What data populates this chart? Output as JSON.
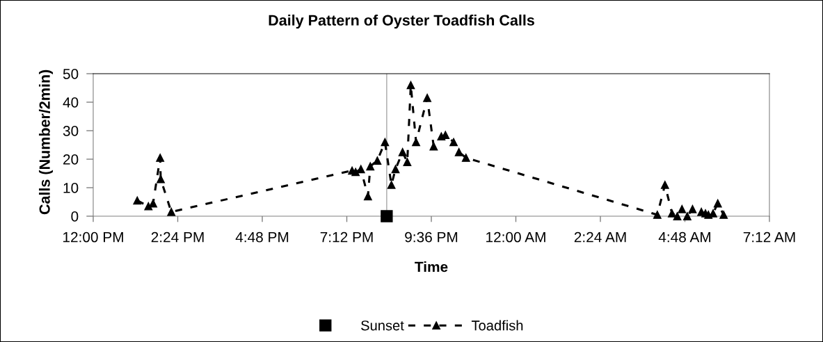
{
  "chart_data": {
    "type": "line",
    "title": "Daily Pattern of Oyster Toadfish Calls",
    "xlabel": "Time",
    "ylabel": "Calls (Number/2min)",
    "xlim": [
      "2000-01-01T12:00",
      "2000-01-02T07:12"
    ],
    "xticks": [
      {
        "value": "2000-01-01T12:00",
        "label": "12:00 PM"
      },
      {
        "value": "2000-01-01T14:24",
        "label": "2:24 PM"
      },
      {
        "value": "2000-01-01T16:48",
        "label": "4:48 PM"
      },
      {
        "value": "2000-01-01T19:12",
        "label": "7:12 PM"
      },
      {
        "value": "2000-01-01T21:36",
        "label": "9:36 PM"
      },
      {
        "value": "2000-01-02T00:00",
        "label": "12:00 AM"
      },
      {
        "value": "2000-01-02T02:24",
        "label": "2:24 AM"
      },
      {
        "value": "2000-01-02T04:48",
        "label": "4:48 AM"
      },
      {
        "value": "2000-01-02T07:12",
        "label": "7:12 AM"
      }
    ],
    "ylim": [
      0,
      50
    ],
    "yticks": [
      0,
      10,
      20,
      30,
      40,
      50
    ],
    "legend": "bottom",
    "ref_lines": [
      {
        "axis": "x",
        "value": "2000-01-01T20:20",
        "color": "#a6a6a6"
      }
    ],
    "series": [
      {
        "name": "Sunset",
        "type": "scatter",
        "color": "#000000",
        "marker": "square",
        "x": [
          "2000-01-01T20:20"
        ],
        "values": [
          0
        ]
      },
      {
        "name": "Toadfish",
        "color": "#000000",
        "marker": "triangle",
        "line_style": "dashed",
        "x": [
          "2000-01-01T13:15",
          "2000-01-01T13:34",
          "2000-01-01T13:42",
          "2000-01-01T13:54",
          "2000-01-01T13:55",
          "2000-01-01T14:13",
          "2000-01-01T19:21",
          "2000-01-01T19:27",
          "2000-01-01T19:36",
          "2000-01-01T19:48",
          "2000-01-01T19:52",
          "2000-01-01T20:04",
          "2000-01-01T20:17",
          "2000-01-01T20:28",
          "2000-01-01T20:35",
          "2000-01-01T20:47",
          "2000-01-01T20:55",
          "2000-01-01T21:01",
          "2000-01-01T21:10",
          "2000-01-01T21:29",
          "2000-01-01T21:40",
          "2000-01-01T21:53",
          "2000-01-01T22:00",
          "2000-01-01T22:14",
          "2000-01-01T22:23",
          "2000-01-01T22:35",
          "2000-01-02T04:01",
          "2000-01-02T04:14",
          "2000-01-02T04:26",
          "2000-01-02T04:35",
          "2000-01-02T04:43",
          "2000-01-02T04:52",
          "2000-01-02T05:01",
          "2000-01-02T05:16",
          "2000-01-02T05:23",
          "2000-01-02T05:28",
          "2000-01-02T05:36",
          "2000-01-02T05:44",
          "2000-01-02T05:54"
        ],
        "values": [
          5.5,
          3.5,
          4.5,
          20.5,
          13,
          1.5,
          16,
          15.5,
          16.5,
          7,
          17.5,
          19.5,
          26,
          11,
          16.5,
          22.5,
          19,
          46,
          26,
          41.5,
          24.5,
          28,
          28.5,
          26,
          22.5,
          20.5,
          0.5,
          11,
          1,
          0,
          2.5,
          0,
          2.5,
          1.5,
          1,
          0.5,
          1,
          4.5,
          0.5
        ]
      }
    ]
  }
}
